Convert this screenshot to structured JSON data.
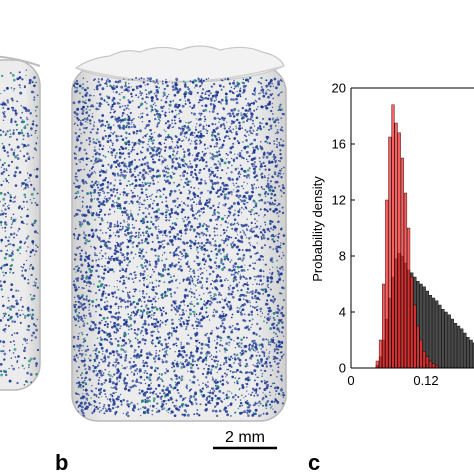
{
  "panels": {
    "b": {
      "letter": "b"
    },
    "c": {
      "letter": "c"
    }
  },
  "scale_bar": {
    "label": "2 mm"
  },
  "colors": {
    "cylinder_fill": "#e8e8e8",
    "cylinder_edge": "#b8b8b8",
    "particle_primary": "#1f3a93",
    "particle_secondary": "#1f8a7a",
    "red_series": "#ff2a2a",
    "dark_series": "#2a2a2a"
  },
  "chart_data": {
    "type": "bar",
    "ylabel": "Probability density",
    "xlabel": "",
    "xlim": [
      0,
      0.2
    ],
    "ylim": [
      0,
      20
    ],
    "x_ticks": [
      0,
      0.12
    ],
    "x_tick_labels": [
      "0",
      "0.12"
    ],
    "y_ticks": [
      0,
      4,
      8,
      12,
      16,
      20
    ],
    "bin_width": 0.005,
    "series": [
      {
        "color": "#ff2a2a",
        "bin_starts": [
          0.04,
          0.045,
          0.05,
          0.055,
          0.06,
          0.065,
          0.07,
          0.075,
          0.08,
          0.085,
          0.09,
          0.095,
          0.1,
          0.105,
          0.11,
          0.115,
          0.12,
          0.125,
          0.13,
          0.135
        ],
        "values": [
          0.5,
          2.0,
          6.0,
          12.0,
          16.5,
          18.8,
          17.5,
          16.8,
          15.0,
          12.5,
          10.0,
          6.5,
          4.5,
          3.0,
          2.0,
          1.2,
          0.8,
          0.5,
          0.3,
          0.2
        ]
      },
      {
        "color": "#2a2a2a",
        "bin_starts": [
          0.04,
          0.045,
          0.05,
          0.055,
          0.06,
          0.065,
          0.07,
          0.075,
          0.08,
          0.085,
          0.09,
          0.095,
          0.1,
          0.105,
          0.11,
          0.115,
          0.12,
          0.125,
          0.13,
          0.135,
          0.14,
          0.145,
          0.15,
          0.155,
          0.16,
          0.165,
          0.17,
          0.175,
          0.18,
          0.185,
          0.19,
          0.195
        ],
        "values": [
          0.2,
          0.8,
          2.0,
          3.5,
          5.0,
          6.5,
          7.8,
          8.2,
          8.0,
          7.5,
          7.0,
          6.8,
          6.5,
          6.2,
          6.0,
          5.8,
          5.5,
          5.2,
          5.0,
          4.8,
          4.5,
          4.2,
          4.0,
          3.8,
          3.5,
          3.2,
          3.0,
          2.8,
          2.5,
          2.2,
          2.0,
          1.8
        ]
      }
    ]
  }
}
